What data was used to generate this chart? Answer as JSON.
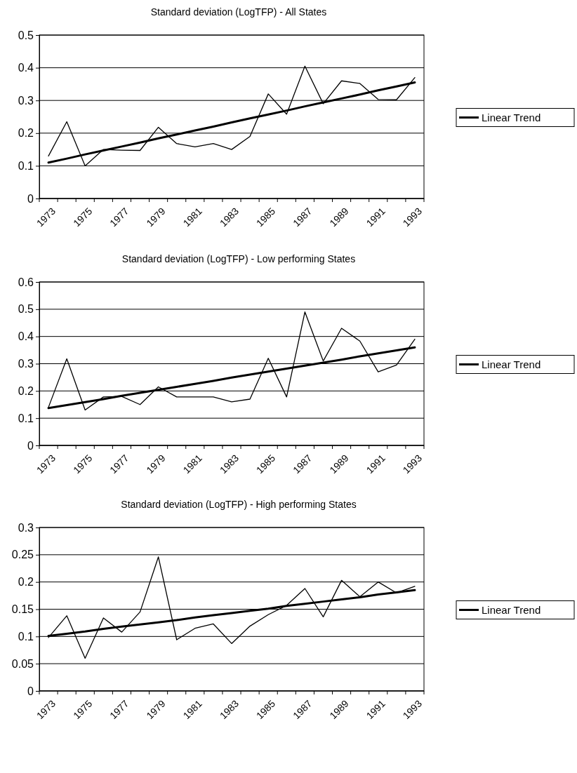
{
  "chart_data": [
    {
      "type": "line",
      "title": "Standard deviation (LogTFP) - All States",
      "categories": [
        "1973",
        null,
        "1975",
        null,
        "1977",
        null,
        "1979",
        null,
        "1981",
        null,
        "1983",
        null,
        "1985",
        null,
        "1987",
        null,
        "1989",
        null,
        "1991",
        null,
        "1993"
      ],
      "ylim": [
        0,
        0.5
      ],
      "yticks": [
        0,
        0.1,
        0.2,
        0.3,
        0.4,
        0.5
      ],
      "grid": "y",
      "legend": "right",
      "series": [
        {
          "color": "#000000",
          "values": [
            0.13,
            0.235,
            0.1,
            0.15,
            0.148,
            0.147,
            0.218,
            0.168,
            0.158,
            0.168,
            0.15,
            0.19,
            0.32,
            0.258,
            0.405,
            0.29,
            0.36,
            0.352,
            0.303,
            0.302,
            0.37
          ]
        },
        {
          "name": "Linear Trend",
          "color": "#000000",
          "values": [
            0.11,
            0.122,
            0.135,
            0.147,
            0.159,
            0.171,
            0.184,
            0.196,
            0.208,
            0.22,
            0.233,
            0.245,
            0.257,
            0.269,
            0.282,
            0.294,
            0.306,
            0.318,
            0.331,
            0.343,
            0.355
          ]
        }
      ]
    },
    {
      "type": "line",
      "title": "Standard deviation (LogTFP) - Low performing States",
      "categories": [
        "1973",
        null,
        "1975",
        null,
        "1977",
        null,
        "1979",
        null,
        "1981",
        null,
        "1983",
        null,
        "1985",
        null,
        "1987",
        null,
        "1989",
        null,
        "1991",
        null,
        "1993"
      ],
      "ylim": [
        0,
        0.6
      ],
      "yticks": [
        0,
        0.1,
        0.2,
        0.3,
        0.4,
        0.5,
        0.6
      ],
      "grid": "y",
      "legend": "right",
      "series": [
        {
          "color": "#000000",
          "values": [
            0.14,
            0.318,
            0.13,
            0.178,
            0.18,
            0.15,
            0.215,
            0.178,
            0.178,
            0.178,
            0.16,
            0.17,
            0.32,
            0.178,
            0.49,
            0.31,
            0.43,
            0.383,
            0.27,
            0.295,
            0.39
          ]
        },
        {
          "name": "Linear Trend",
          "color": "#000000",
          "values": [
            0.137,
            0.148,
            0.159,
            0.17,
            0.182,
            0.193,
            0.204,
            0.215,
            0.226,
            0.237,
            0.249,
            0.26,
            0.271,
            0.282,
            0.293,
            0.304,
            0.315,
            0.327,
            0.338,
            0.349,
            0.36
          ]
        }
      ]
    },
    {
      "type": "line",
      "title": "Standard deviation (LogTFP) - High performing States",
      "categories": [
        "1973",
        null,
        "1975",
        null,
        "1977",
        null,
        "1979",
        null,
        "1981",
        null,
        "1983",
        null,
        "1985",
        null,
        "1987",
        null,
        "1989",
        null,
        "1991",
        null,
        "1993"
      ],
      "ylim": [
        0,
        0.3
      ],
      "yticks": [
        0,
        0.05,
        0.1,
        0.15,
        0.2,
        0.25,
        0.3
      ],
      "grid": "y",
      "legend": "right",
      "series": [
        {
          "color": "#000000",
          "values": [
            0.098,
            0.138,
            0.06,
            0.134,
            0.108,
            0.145,
            0.246,
            0.094,
            0.115,
            0.123,
            0.087,
            0.119,
            0.14,
            0.157,
            0.188,
            0.136,
            0.203,
            0.173,
            0.2,
            0.18,
            0.192
          ]
        },
        {
          "name": "Linear Trend",
          "color": "#000000",
          "values": [
            0.101,
            0.105,
            0.109,
            0.114,
            0.118,
            0.122,
            0.126,
            0.13,
            0.135,
            0.139,
            0.143,
            0.147,
            0.151,
            0.156,
            0.16,
            0.164,
            0.168,
            0.172,
            0.177,
            0.181,
            0.185
          ]
        }
      ]
    }
  ]
}
